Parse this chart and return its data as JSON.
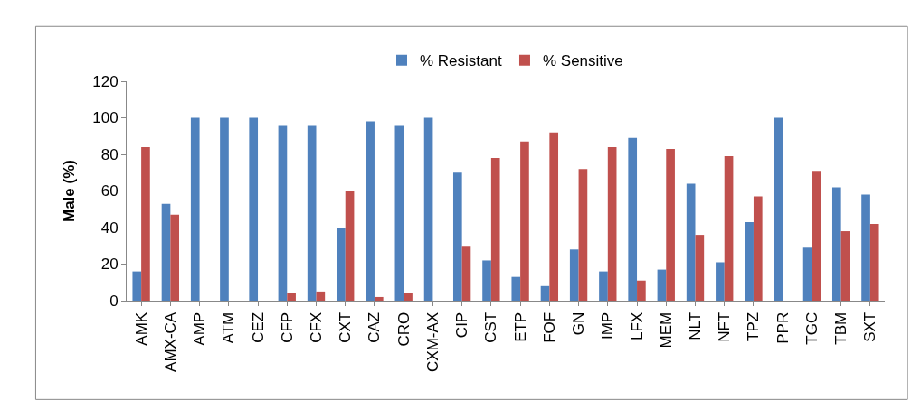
{
  "chart_data": {
    "type": "bar",
    "ylabel": "Male (%)",
    "categories": [
      "AMK",
      "AMX-CA",
      "AMP",
      "ATM",
      "CEZ",
      "CFP",
      "CFX",
      "CXT",
      "CAZ",
      "CRO",
      "CXM-AX",
      "CIP",
      "CST",
      "ETP",
      "FOF",
      "GN",
      "IMP",
      "LFX",
      "MEM",
      "NLT",
      "NFT",
      "TPZ",
      "PPR",
      "TGC",
      "TBM",
      "SXT"
    ],
    "series": [
      {
        "name": "% Resistant",
        "color": "#4f81bd",
        "values": [
          16,
          53,
          100,
          100,
          100,
          96,
          96,
          40,
          98,
          96,
          100,
          70,
          22,
          13,
          8,
          28,
          16,
          89,
          17,
          64,
          21,
          43,
          100,
          29,
          62,
          58
        ]
      },
      {
        "name": "% Sensitive",
        "color": "#c0504d",
        "values": [
          84,
          47,
          0,
          0,
          0,
          4,
          5,
          60,
          2,
          4,
          0,
          30,
          78,
          87,
          92,
          72,
          84,
          11,
          83,
          36,
          79,
          57,
          0,
          71,
          38,
          42
        ]
      }
    ],
    "ylim": [
      0,
      120
    ],
    "yticks": [
      0,
      20,
      40,
      60,
      80,
      100,
      120
    ],
    "legend": "top"
  }
}
